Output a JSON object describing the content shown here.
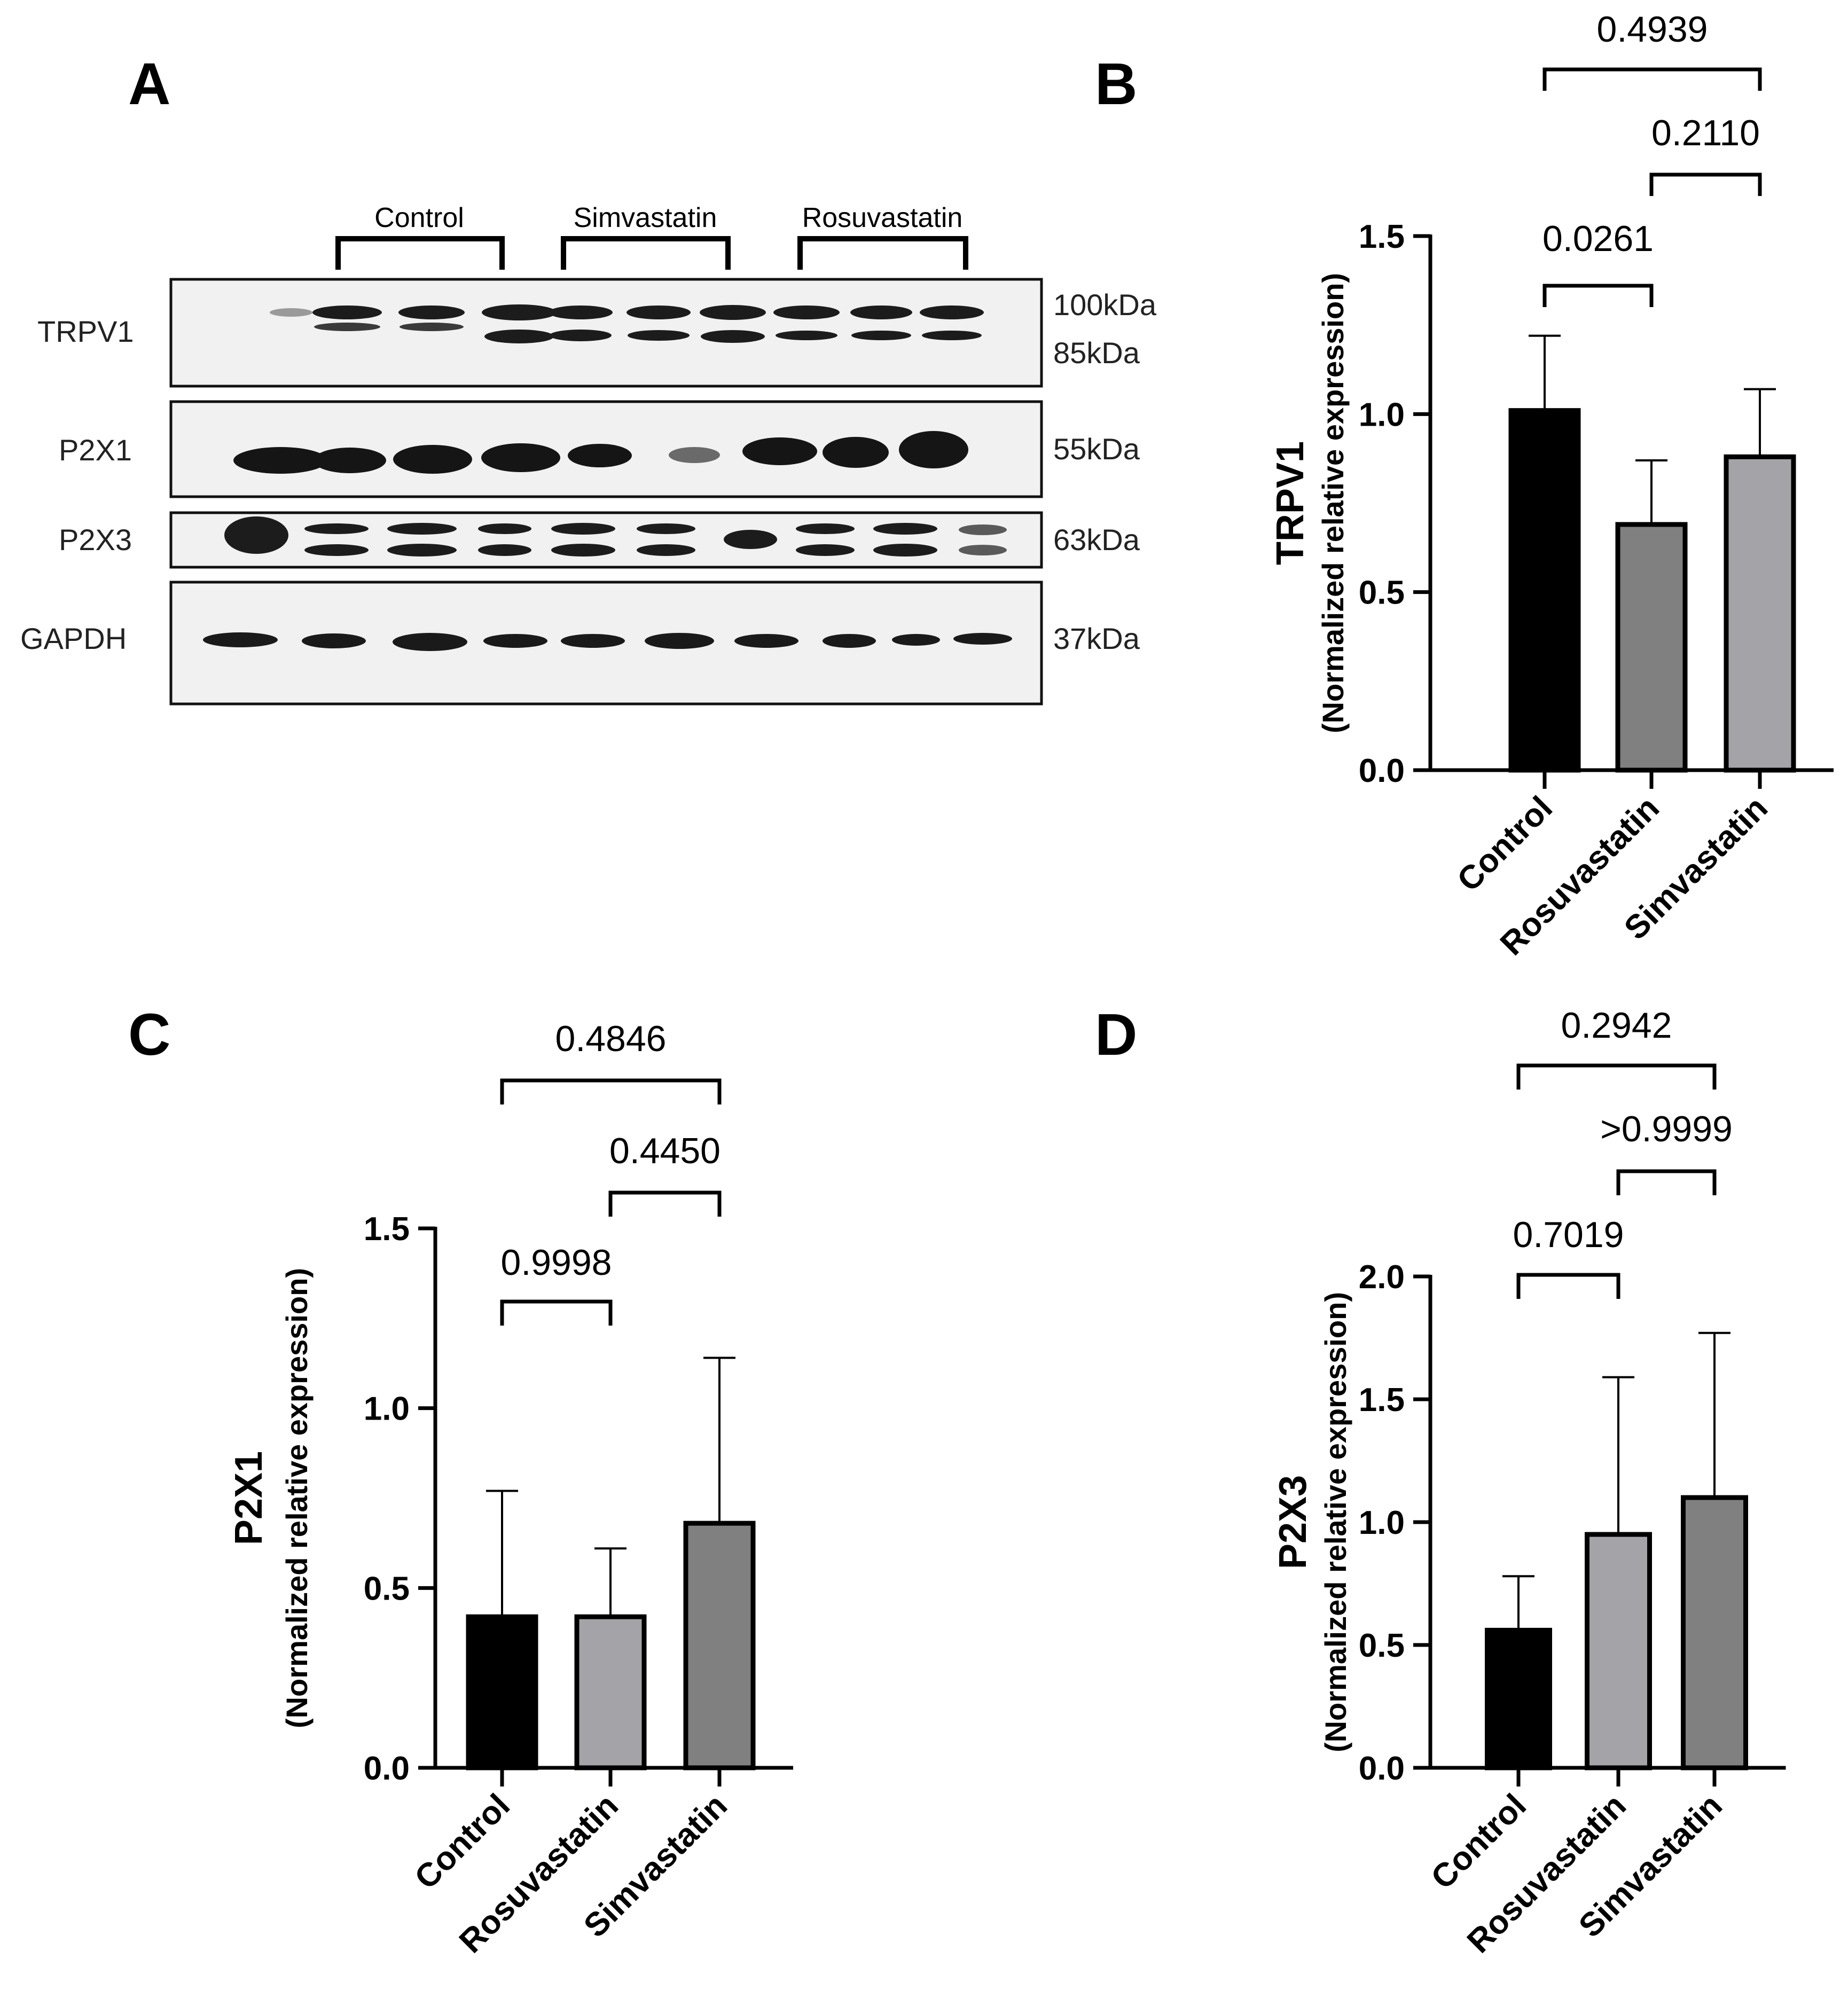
{
  "blot": {
    "panel_label": "A",
    "groups": [
      "Control",
      "Simvastatin",
      "Rosuvastatin"
    ],
    "rows": [
      {
        "label": "TRPV1",
        "markers": [
          "100kDa",
          "85kDa"
        ]
      },
      {
        "label": "P2X1",
        "markers": [
          "55kDa"
        ]
      },
      {
        "label": "P2X3",
        "markers": [
          "63kDa"
        ]
      },
      {
        "label": "GAPDH",
        "markers": [
          "37kDa"
        ]
      }
    ]
  },
  "chart_data": [
    {
      "panel": "B",
      "type": "bar",
      "ylabel": "TRPV1",
      "ylabel_sub": "(Normalized relative expression)",
      "categories": [
        "Control",
        "Rosuvastatin",
        "Simvastatin"
      ],
      "values": [
        1.01,
        0.69,
        0.88
      ],
      "errors": [
        0.21,
        0.18,
        0.19
      ],
      "colors": [
        "#000000",
        "#808080",
        "#a3a3a8"
      ],
      "ylim": [
        0,
        1.5
      ],
      "yticks": [
        "0.0",
        "0.5",
        "1.0",
        "1.5"
      ],
      "comparisons": [
        {
          "from": 0,
          "to": 1,
          "p": "0.0261"
        },
        {
          "from": 1,
          "to": 2,
          "p": "0.2110"
        },
        {
          "from": 0,
          "to": 2,
          "p": "0.4939"
        }
      ]
    },
    {
      "panel": "C",
      "type": "bar",
      "ylabel": "P2X1",
      "ylabel_sub": "(Normalized relative expression)",
      "categories": [
        "Control",
        "Rosuvastatin",
        "Simvastatin"
      ],
      "values": [
        0.42,
        0.42,
        0.68
      ],
      "errors": [
        0.35,
        0.19,
        0.46
      ],
      "colors": [
        "#000000",
        "#a3a3a8",
        "#808080"
      ],
      "ylim": [
        0,
        1.5
      ],
      "yticks": [
        "0.0",
        "0.5",
        "1.0",
        "1.5"
      ],
      "comparisons": [
        {
          "from": 0,
          "to": 1,
          "p": "0.9998"
        },
        {
          "from": 1,
          "to": 2,
          "p": "0.4450"
        },
        {
          "from": 0,
          "to": 2,
          "p": "0.4846"
        }
      ]
    },
    {
      "panel": "D",
      "type": "bar",
      "ylabel": "P2X3",
      "ylabel_sub": "(Normalized relative expression)",
      "categories": [
        "Control",
        "Rosuvastatin",
        "Simvastatin"
      ],
      "values": [
        0.56,
        0.95,
        1.1
      ],
      "errors": [
        0.22,
        0.64,
        0.67
      ],
      "colors": [
        "#000000",
        "#a3a3a8",
        "#808080"
      ],
      "ylim": [
        0,
        2.0
      ],
      "yticks": [
        "0.0",
        "0.5",
        "1.0",
        "1.5",
        "2.0"
      ],
      "comparisons": [
        {
          "from": 0,
          "to": 1,
          "p": "0.7019"
        },
        {
          "from": 1,
          "to": 2,
          "p": ">0.9999"
        },
        {
          "from": 0,
          "to": 2,
          "p": "0.2942"
        }
      ]
    }
  ]
}
